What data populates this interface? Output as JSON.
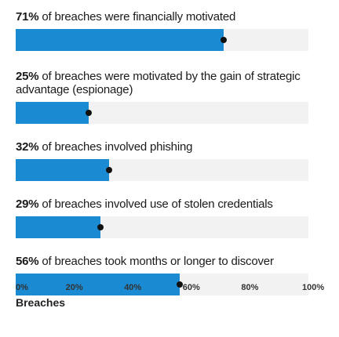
{
  "chart_data": {
    "type": "bar",
    "orientation": "horizontal",
    "xlabel": "Breaches",
    "xlim": [
      0,
      100
    ],
    "x_ticks": [
      "0%",
      "20%",
      "40%",
      "60%",
      "80%",
      "100%"
    ],
    "bars": [
      {
        "pct_label": "71%",
        "text": " of breaches were financially motivated",
        "value": 71
      },
      {
        "pct_label": "25%",
        "text": " of breaches were motivated by the gain of strategic advantage (espionage)",
        "value": 25
      },
      {
        "pct_label": "32%",
        "text": " of breaches involved phishing",
        "value": 32
      },
      {
        "pct_label": "29%",
        "text": " of breaches involved use of stolen credentials",
        "value": 29
      },
      {
        "pct_label": "56%",
        "text": " of breaches took months or longer to discover",
        "value": 56
      }
    ],
    "colors": {
      "bar": "#1a8ad2",
      "track": "#f2f2f2",
      "marker": "#111111"
    }
  }
}
